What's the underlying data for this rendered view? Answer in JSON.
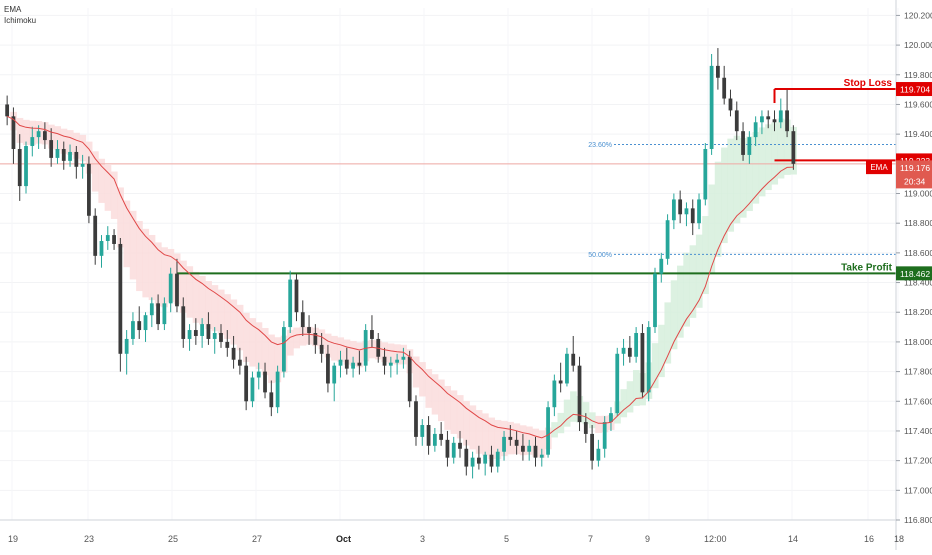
{
  "indicators": [
    "EMA",
    "Ichimoku"
  ],
  "colors": {
    "up": "#26a69a",
    "down": "#3b3b3b",
    "ema": "#e04848",
    "stop": "#e00000",
    "take": "#1e6e1e",
    "fib": "#4a90d0",
    "price_badge": "#e05a50",
    "cloud_bull": "#d6efdc",
    "cloud_bear": "#fadcdc"
  },
  "chart_data": {
    "type": "candlestick",
    "ylim": [
      116.8,
      120.25
    ],
    "y_ticks": [
      "120.200",
      "120.000",
      "119.800",
      "119.600",
      "119.400",
      "119.200",
      "119.000",
      "118.800",
      "118.600",
      "118.400",
      "118.200",
      "118.000",
      "117.800",
      "117.600",
      "117.400",
      "117.200",
      "117.000",
      "116.800"
    ],
    "x_ticks": [
      "19",
      "23",
      "25",
      "27",
      "Oct",
      "3",
      "5",
      "7",
      "9",
      "12:00",
      "14",
      "16",
      "18"
    ],
    "ema_label": "EMA",
    "last_price": "119.176",
    "countdown": "20:34",
    "levels": [
      {
        "name": "Stop Loss",
        "value": 119.704,
        "price_label": "119.704",
        "role": "stop"
      },
      {
        "name": "",
        "value": 119.223,
        "price_label": "119.223",
        "role": "entry"
      },
      {
        "name": "Take Profit",
        "value": 118.462,
        "price_label": "118.462",
        "role": "take"
      }
    ],
    "fib_levels": [
      {
        "label": "23.60%",
        "value": 119.33
      },
      {
        "label": "50.00%",
        "value": 118.59
      }
    ],
    "current_price_line": 119.2,
    "candles": [
      [
        119.6,
        119.66,
        119.46,
        119.52
      ],
      [
        119.52,
        119.58,
        119.2,
        119.3
      ],
      [
        119.3,
        119.4,
        118.95,
        119.05
      ],
      [
        119.05,
        119.35,
        119.0,
        119.32
      ],
      [
        119.32,
        119.45,
        119.25,
        119.38
      ],
      [
        119.38,
        119.46,
        119.3,
        119.42
      ],
      [
        119.42,
        119.48,
        119.3,
        119.36
      ],
      [
        119.36,
        119.44,
        119.18,
        119.24
      ],
      [
        119.24,
        119.36,
        119.2,
        119.3
      ],
      [
        119.3,
        119.35,
        119.16,
        119.22
      ],
      [
        119.22,
        119.33,
        119.18,
        119.28
      ],
      [
        119.28,
        119.32,
        119.1,
        119.18
      ],
      [
        119.18,
        119.26,
        119.1,
        119.2
      ],
      [
        119.2,
        119.25,
        118.8,
        118.85
      ],
      [
        118.85,
        118.9,
        118.52,
        118.58
      ],
      [
        118.58,
        118.72,
        118.5,
        118.68
      ],
      [
        118.68,
        118.78,
        118.62,
        118.72
      ],
      [
        118.72,
        118.76,
        118.62,
        118.66
      ],
      [
        118.66,
        118.7,
        117.8,
        117.92
      ],
      [
        117.92,
        118.08,
        117.78,
        118.02
      ],
      [
        118.02,
        118.2,
        117.98,
        118.14
      ],
      [
        118.14,
        118.24,
        118.02,
        118.08
      ],
      [
        118.08,
        118.2,
        118.0,
        118.18
      ],
      [
        118.18,
        118.3,
        118.1,
        118.26
      ],
      [
        118.26,
        118.32,
        118.08,
        118.12
      ],
      [
        118.12,
        118.3,
        118.08,
        118.26
      ],
      [
        118.26,
        118.5,
        118.2,
        118.46
      ],
      [
        118.46,
        118.56,
        118.2,
        118.24
      ],
      [
        118.24,
        118.3,
        117.96,
        118.02
      ],
      [
        118.02,
        118.12,
        117.94,
        118.08
      ],
      [
        118.08,
        118.16,
        117.98,
        118.04
      ],
      [
        118.04,
        118.16,
        117.96,
        118.12
      ],
      [
        118.12,
        118.2,
        117.98,
        118.02
      ],
      [
        118.02,
        118.1,
        117.92,
        118.06
      ],
      [
        118.06,
        118.12,
        117.96,
        118.0
      ],
      [
        118.0,
        118.08,
        117.9,
        117.96
      ],
      [
        117.96,
        118.04,
        117.82,
        117.88
      ],
      [
        117.88,
        117.96,
        117.78,
        117.84
      ],
      [
        117.84,
        117.9,
        117.54,
        117.6
      ],
      [
        117.6,
        117.8,
        117.56,
        117.76
      ],
      [
        117.76,
        117.86,
        117.68,
        117.8
      ],
      [
        117.8,
        117.86,
        117.62,
        117.66
      ],
      [
        117.66,
        117.74,
        117.5,
        117.56
      ],
      [
        117.56,
        117.84,
        117.52,
        117.8
      ],
      [
        117.8,
        118.14,
        117.76,
        118.1
      ],
      [
        118.1,
        118.48,
        118.06,
        118.42
      ],
      [
        118.42,
        118.46,
        118.14,
        118.2
      ],
      [
        118.2,
        118.28,
        118.04,
        118.1
      ],
      [
        118.1,
        118.18,
        117.98,
        118.06
      ],
      [
        118.06,
        118.12,
        117.92,
        117.98
      ],
      [
        117.98,
        118.06,
        117.86,
        117.92
      ],
      [
        117.92,
        117.98,
        117.66,
        117.72
      ],
      [
        117.72,
        117.86,
        117.6,
        117.84
      ],
      [
        117.84,
        117.94,
        117.76,
        117.88
      ],
      [
        117.88,
        117.96,
        117.78,
        117.82
      ],
      [
        117.82,
        117.9,
        117.76,
        117.86
      ],
      [
        117.86,
        117.94,
        117.78,
        117.84
      ],
      [
        117.84,
        118.12,
        117.8,
        118.08
      ],
      [
        118.08,
        118.18,
        117.96,
        118.02
      ],
      [
        118.02,
        118.06,
        117.86,
        117.9
      ],
      [
        117.9,
        117.96,
        117.78,
        117.84
      ],
      [
        117.84,
        117.9,
        117.76,
        117.86
      ],
      [
        117.86,
        117.92,
        117.78,
        117.88
      ],
      [
        117.88,
        117.96,
        117.82,
        117.9
      ],
      [
        117.9,
        117.94,
        117.56,
        117.6
      ],
      [
        117.6,
        117.64,
        117.3,
        117.36
      ],
      [
        117.36,
        117.48,
        117.3,
        117.44
      ],
      [
        117.44,
        117.5,
        117.24,
        117.3
      ],
      [
        117.3,
        117.42,
        117.26,
        117.38
      ],
      [
        117.38,
        117.46,
        117.3,
        117.34
      ],
      [
        117.34,
        117.4,
        117.16,
        117.22
      ],
      [
        117.22,
        117.36,
        117.18,
        117.32
      ],
      [
        117.32,
        117.4,
        117.22,
        117.28
      ],
      [
        117.28,
        117.34,
        117.1,
        117.16
      ],
      [
        117.16,
        117.26,
        117.08,
        117.22
      ],
      [
        117.22,
        117.3,
        117.14,
        117.18
      ],
      [
        117.18,
        117.26,
        117.1,
        117.24
      ],
      [
        117.24,
        117.3,
        117.12,
        117.16
      ],
      [
        117.16,
        117.28,
        117.12,
        117.26
      ],
      [
        117.26,
        117.4,
        117.2,
        117.36
      ],
      [
        117.36,
        117.44,
        117.3,
        117.34
      ],
      [
        117.34,
        117.4,
        117.24,
        117.3
      ],
      [
        117.3,
        117.38,
        117.2,
        117.26
      ],
      [
        117.26,
        117.34,
        117.2,
        117.3
      ],
      [
        117.3,
        117.36,
        117.16,
        117.22
      ],
      [
        117.22,
        117.28,
        117.16,
        117.24
      ],
      [
        117.24,
        117.6,
        117.22,
        117.56
      ],
      [
        117.56,
        117.78,
        117.5,
        117.74
      ],
      [
        117.74,
        117.86,
        117.66,
        117.72
      ],
      [
        117.72,
        117.96,
        117.7,
        117.92
      ],
      [
        117.92,
        118.04,
        117.8,
        117.84
      ],
      [
        117.84,
        117.9,
        117.4,
        117.46
      ],
      [
        117.46,
        117.52,
        117.32,
        117.38
      ],
      [
        117.38,
        117.44,
        117.14,
        117.2
      ],
      [
        117.2,
        117.34,
        117.16,
        117.28
      ],
      [
        117.28,
        117.5,
        117.22,
        117.46
      ],
      [
        117.46,
        117.56,
        117.4,
        117.52
      ],
      [
        117.52,
        117.96,
        117.5,
        117.92
      ],
      [
        117.92,
        118.02,
        117.84,
        117.96
      ],
      [
        117.96,
        118.04,
        117.86,
        117.9
      ],
      [
        117.9,
        118.1,
        117.86,
        118.06
      ],
      [
        118.06,
        118.12,
        117.62,
        117.66
      ],
      [
        117.66,
        118.14,
        117.6,
        118.1
      ],
      [
        118.1,
        118.5,
        118.06,
        118.46
      ],
      [
        118.46,
        118.6,
        118.4,
        118.56
      ],
      [
        118.56,
        118.86,
        118.52,
        118.82
      ],
      [
        118.82,
        119.0,
        118.76,
        118.96
      ],
      [
        118.96,
        119.02,
        118.8,
        118.86
      ],
      [
        118.86,
        118.94,
        118.78,
        118.9
      ],
      [
        118.9,
        118.96,
        118.72,
        118.8
      ],
      [
        118.8,
        119.0,
        118.76,
        118.96
      ],
      [
        118.96,
        119.34,
        118.92,
        119.3
      ],
      [
        119.3,
        119.94,
        119.26,
        119.86
      ],
      [
        119.86,
        119.98,
        119.7,
        119.78
      ],
      [
        119.78,
        119.86,
        119.6,
        119.64
      ],
      [
        119.64,
        119.7,
        119.52,
        119.56
      ],
      [
        119.56,
        119.62,
        119.36,
        119.42
      ],
      [
        119.42,
        119.48,
        119.22,
        119.26
      ],
      [
        119.26,
        119.42,
        119.2,
        119.38
      ],
      [
        119.38,
        119.52,
        119.32,
        119.48
      ],
      [
        119.48,
        119.56,
        119.4,
        119.52
      ],
      [
        119.52,
        119.56,
        119.44,
        119.5
      ],
      [
        119.5,
        119.56,
        119.42,
        119.48
      ],
      [
        119.48,
        119.64,
        119.44,
        119.56
      ],
      [
        119.56,
        119.7,
        119.38,
        119.42
      ],
      [
        119.42,
        119.46,
        119.16,
        119.2
      ]
    ]
  }
}
